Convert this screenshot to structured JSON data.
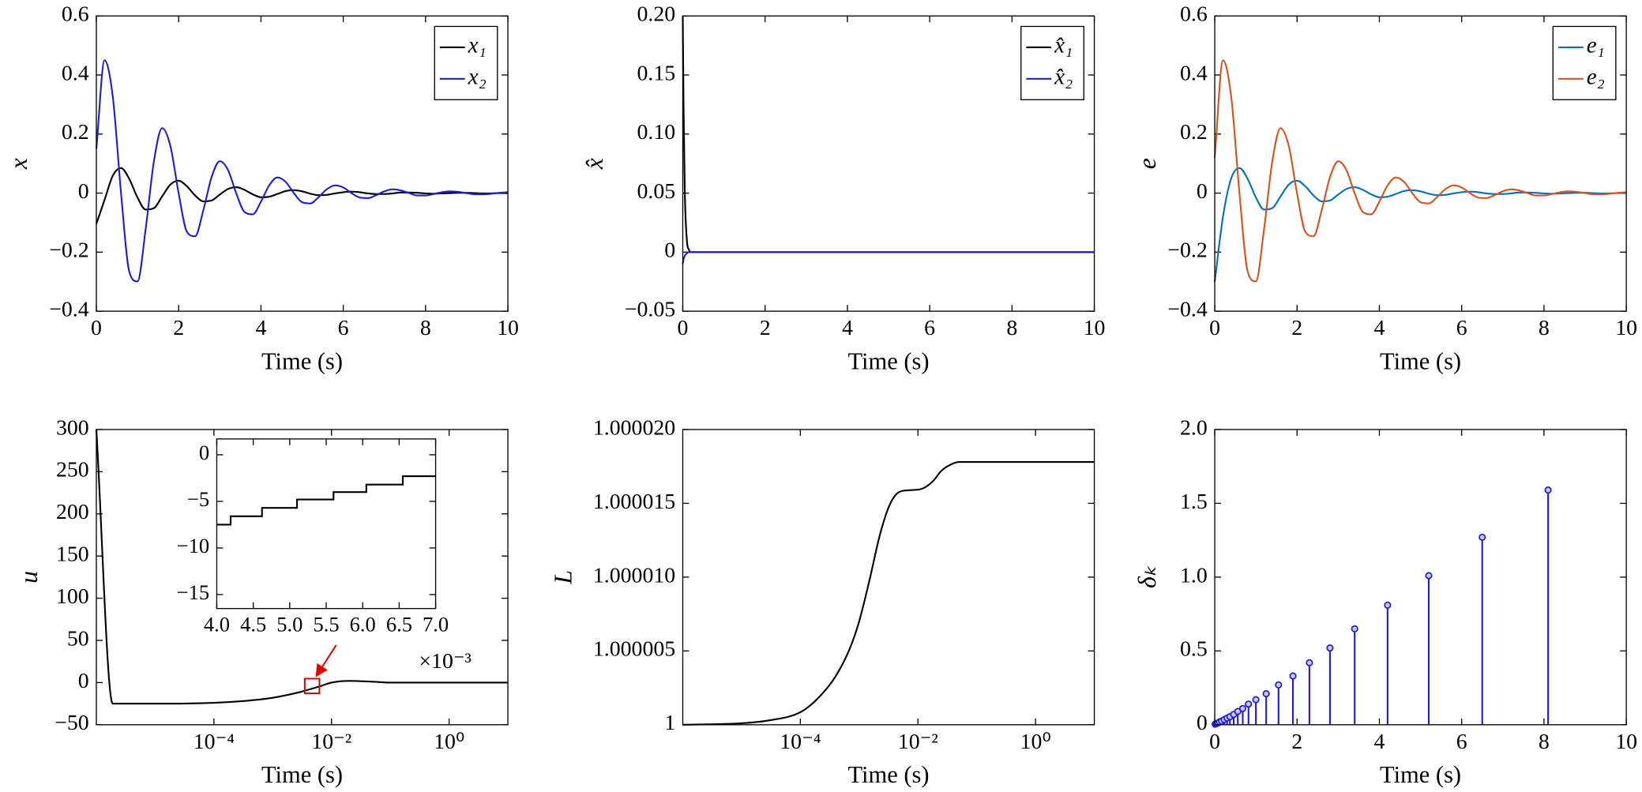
{
  "chart_data": [
    {
      "type": "line",
      "xlabel": "Time (s)",
      "ylabel": "x",
      "xlim": [
        0,
        10
      ],
      "ylim": [
        -0.4,
        0.6
      ],
      "xticks": [
        0,
        2,
        4,
        6,
        8,
        10
      ],
      "yticks": [
        {
          "value": -0.4,
          "label": "−0.4"
        },
        {
          "value": -0.2,
          "label": "−0.2"
        },
        0,
        0.2,
        0.4,
        0.6
      ],
      "legend": "northeast",
      "x": [
        0,
        0.2,
        0.4,
        0.6,
        0.8,
        1,
        1.2,
        1.4,
        1.6,
        1.8,
        2,
        2.2,
        2.4,
        2.6,
        2.8,
        3,
        3.2,
        3.4,
        3.6,
        3.8,
        4,
        4.2,
        4.4,
        4.6,
        4.8,
        5,
        5.2,
        5.4,
        5.6,
        5.8,
        6,
        6.2,
        6.4,
        6.6,
        6.8,
        7,
        7.2,
        7.4,
        7.6,
        7.8,
        8,
        8.2,
        8.4,
        8.6,
        8.8,
        9,
        9.2,
        9.4,
        9.6,
        9.8,
        10
      ],
      "series": [
        {
          "name": "x₁",
          "color": "#000000",
          "values": [
            -0.104,
            -0.023,
            0.059,
            0.085,
            0.048,
            -0.015,
            -0.056,
            -0.051,
            -0.011,
            0.029,
            0.042,
            0.023,
            -0.008,
            -0.028,
            -0.025,
            -0.005,
            0.014,
            0.02,
            0.011,
            -0.004,
            -0.014,
            -0.012,
            -0.003,
            0.007,
            0.01,
            0.006,
            -0.002,
            -0.007,
            -0.006,
            -0.001,
            0.003,
            0.005,
            0.003,
            -0.001,
            -0.003,
            -0.003,
            -0.001,
            0.002,
            0.002,
            0.001,
            -0.001,
            -0.002,
            -0.001,
            0,
            0.001,
            0.001,
            0,
            -0.001,
            -0.001,
            0,
            0
          ]
        },
        {
          "name": "x₂",
          "color": "#1f1fd1",
          "values": [
            0.15,
            0.45,
            0.326,
            0,
            -0.266,
            -0.299,
            -0.12,
            0.109,
            0.22,
            0.159,
            -0.001,
            -0.131,
            -0.146,
            -0.058,
            0.054,
            0.108,
            0.078,
            -0.001,
            -0.064,
            -0.072,
            -0.029,
            0.026,
            0.053,
            0.038,
            0,
            -0.031,
            -0.035,
            -0.014,
            0.013,
            0.026,
            0.019,
            0,
            -0.015,
            -0.017,
            -0.007,
            0.006,
            0.013,
            0.009,
            0,
            -0.008,
            -0.008,
            -0.003,
            0.003,
            0.006,
            0.004,
            0,
            -0.004,
            -0.004,
            -0.002,
            0.001,
            0.003
          ]
        }
      ]
    },
    {
      "type": "line",
      "xlabel": "Time (s)",
      "ylabel": "x̂",
      "xlim": [
        0,
        10
      ],
      "ylim": [
        -0.05,
        0.2
      ],
      "xticks": [
        0,
        2,
        4,
        6,
        8,
        10
      ],
      "yticks": [
        {
          "value": -0.05,
          "label": "−0.05"
        },
        0,
        0.05,
        {
          "value": 0.1,
          "label": "0.10"
        },
        0.15,
        {
          "value": 0.2,
          "label": "0.20"
        }
      ],
      "legend": "northeast",
      "x": [
        0,
        0.02,
        0.05,
        0.1,
        0.15,
        0.2,
        0.3,
        10
      ],
      "series": [
        {
          "name": "x̂₁",
          "color": "#000000",
          "values": [
            0.2,
            0.12,
            0.05,
            0.01,
            0.002,
            0,
            0,
            0
          ]
        },
        {
          "name": "x̂₂",
          "color": "#1f1fd1",
          "values": [
            -0.01,
            -0.006,
            -0.003,
            -0.001,
            0,
            0,
            0,
            0
          ]
        }
      ]
    },
    {
      "type": "line",
      "xlabel": "Time (s)",
      "ylabel": "e",
      "xlim": [
        0,
        10
      ],
      "ylim": [
        -0.4,
        0.6
      ],
      "xticks": [
        0,
        2,
        4,
        6,
        8,
        10
      ],
      "yticks": [
        {
          "value": -0.4,
          "label": "−0.4"
        },
        {
          "value": -0.2,
          "label": "−0.2"
        },
        0,
        0.2,
        0.4,
        0.6
      ],
      "legend": "northeast",
      "x": [
        0,
        0.2,
        0.4,
        0.6,
        0.8,
        1,
        1.2,
        1.4,
        1.6,
        1.8,
        2,
        2.2,
        2.4,
        2.6,
        2.8,
        3,
        3.2,
        3.4,
        3.6,
        3.8,
        4,
        4.2,
        4.4,
        4.6,
        4.8,
        5,
        5.2,
        5.4,
        5.6,
        5.8,
        6,
        6.2,
        6.4,
        6.6,
        6.8,
        7,
        7.2,
        7.4,
        7.6,
        7.8,
        8,
        8.2,
        8.4,
        8.6,
        8.8,
        9,
        9.2,
        9.4,
        9.6,
        9.8,
        10
      ],
      "series": [
        {
          "name": "e₁",
          "color": "#0072bd",
          "values": [
            -0.3,
            -0.08,
            0.05,
            0.085,
            0.048,
            -0.015,
            -0.056,
            -0.051,
            -0.011,
            0.029,
            0.042,
            0.023,
            -0.008,
            -0.028,
            -0.025,
            -0.005,
            0.014,
            0.02,
            0.011,
            -0.004,
            -0.014,
            -0.012,
            -0.003,
            0.007,
            0.01,
            0.006,
            -0.002,
            -0.007,
            -0.006,
            -0.001,
            0.003,
            0.005,
            0.003,
            -0.001,
            -0.003,
            -0.003,
            -0.001,
            0.002,
            0.002,
            0.001,
            -0.001,
            -0.002,
            -0.001,
            0,
            0.001,
            0.001,
            0,
            -0.001,
            -0.001,
            0,
            0
          ]
        },
        {
          "name": "e₂",
          "color": "#d95319",
          "values": [
            0.12,
            0.45,
            0.326,
            0,
            -0.266,
            -0.299,
            -0.12,
            0.109,
            0.22,
            0.159,
            -0.001,
            -0.131,
            -0.146,
            -0.058,
            0.054,
            0.108,
            0.078,
            -0.001,
            -0.064,
            -0.072,
            -0.029,
            0.026,
            0.053,
            0.038,
            0,
            -0.031,
            -0.035,
            -0.014,
            0.013,
            0.026,
            0.019,
            0,
            -0.015,
            -0.017,
            -0.007,
            0.006,
            0.013,
            0.009,
            0,
            -0.008,
            -0.008,
            -0.003,
            0.003,
            0.006,
            0.004,
            0,
            -0.004,
            -0.004,
            -0.002,
            0.001,
            0.003
          ]
        }
      ]
    },
    {
      "type": "line",
      "xlabel": "Time (s)",
      "ylabel": "u",
      "xscale": "log",
      "xlim": [
        1e-06,
        10
      ],
      "ylim": [
        -50,
        300
      ],
      "xticks": [
        {
          "value": 0.0001,
          "label": "10⁻⁴"
        },
        {
          "value": 0.01,
          "label": "10⁻²"
        },
        {
          "value": 1,
          "label": "10⁰"
        }
      ],
      "yticks": [
        {
          "value": -50,
          "label": "−50"
        },
        0,
        50,
        100,
        150,
        200,
        250,
        300
      ],
      "x": [
        1e-06,
        1.9e-06,
        1e-05,
        0.0001,
        0.0003,
        0.001,
        0.003,
        0.006,
        0.01,
        0.02,
        0.05,
        0.1,
        1,
        10
      ],
      "values": [
        300,
        -25,
        -25,
        -24,
        -22,
        -18,
        -11,
        -5,
        0,
        2,
        1,
        0,
        0,
        0
      ],
      "color": "#000000",
      "inset": {
        "xlim": [
          4,
          7
        ],
        "ylim": [
          -16.5,
          1.7
        ],
        "xticks": [
          {
            "value": 4,
            "label": "4.0"
          },
          4.5,
          {
            "value": 5,
            "label": "5.0"
          },
          5.5,
          {
            "value": 6,
            "label": "6.0"
          },
          6.5,
          {
            "value": 7,
            "label": "7.0"
          }
        ],
        "yticks": [
          {
            "value": -15,
            "label": "−15"
          },
          {
            "value": -10,
            "label": "−10"
          },
          {
            "value": -5,
            "label": "−5"
          },
          0
        ],
        "x": [
          4,
          4.19,
          4.19,
          4.62,
          4.62,
          5.1,
          5.1,
          5.6,
          5.6,
          6.05,
          6.05,
          6.55,
          6.55,
          7
        ],
        "values": [
          -7.5,
          -7.5,
          -6.6,
          -6.6,
          -5.7,
          -5.7,
          -4.8,
          -4.8,
          -4.0,
          -4.0,
          -3.2,
          -3.2,
          -2.3,
          -2.3
        ],
        "color": "#000000",
        "exponent_label": "×10⁻³"
      }
    },
    {
      "type": "line",
      "xlabel": "Time (s)",
      "ylabel": "L",
      "xscale": "log",
      "xlim": [
        1e-06,
        10
      ],
      "ylim": [
        1,
        1.00002
      ],
      "xticks": [
        {
          "value": 0.0001,
          "label": "10⁻⁴"
        },
        {
          "value": 0.01,
          "label": "10⁻²"
        },
        {
          "value": 1,
          "label": "10⁰"
        }
      ],
      "yticks": [
        1,
        1.000005,
        {
          "value": 1.00001,
          "label": "1.000010"
        },
        1.000015,
        {
          "value": 1.00002,
          "label": "1.000020"
        }
      ],
      "x": [
        1e-06,
        1e-05,
        3e-05,
        0.0001,
        0.0002,
        0.0004,
        0.0007,
        0.001,
        0.0015,
        0.0023,
        0.0034,
        0.005,
        0.008,
        0.012,
        0.018,
        0.025,
        0.035,
        0.05,
        0.1,
        10
      ],
      "values": [
        1,
        1.0000001,
        1.0000003,
        1.00000085,
        1.0000018,
        1.0000033,
        1.0000052,
        1.000007,
        1.0000098,
        1.000013,
        1.000015,
        1.0000158,
        1.0000159,
        1.000016,
        1.0000165,
        1.0000172,
        1.0000176,
        1.0000178,
        1.0000178,
        1.0000178
      ],
      "color": "#000000"
    },
    {
      "type": "stem",
      "xlabel": "Time (s)",
      "ylabel": "δₖ",
      "xlim": [
        0,
        10
      ],
      "ylim": [
        0,
        2
      ],
      "xticks": [
        0,
        2,
        4,
        6,
        8,
        10
      ],
      "yticks": [
        0,
        0.5,
        {
          "value": 1,
          "label": "1.0"
        },
        1.5,
        {
          "value": 2,
          "label": "2.0"
        }
      ],
      "x": [
        0.01,
        0.04,
        0.08,
        0.12,
        0.17,
        0.23,
        0.3,
        0.37,
        0.46,
        0.56,
        0.68,
        0.82,
        1,
        1.25,
        1.55,
        1.9,
        2.3,
        2.8,
        3.4,
        4.2,
        5.2,
        6.5,
        8.1
      ],
      "values": [
        0.004,
        0.008,
        0.012,
        0.02,
        0.025,
        0.035,
        0.045,
        0.055,
        0.07,
        0.09,
        0.11,
        0.14,
        0.17,
        0.21,
        0.27,
        0.33,
        0.42,
        0.52,
        0.65,
        0.81,
        1.01,
        1.27,
        1.59
      ],
      "color": "#1f1fd1"
    }
  ]
}
